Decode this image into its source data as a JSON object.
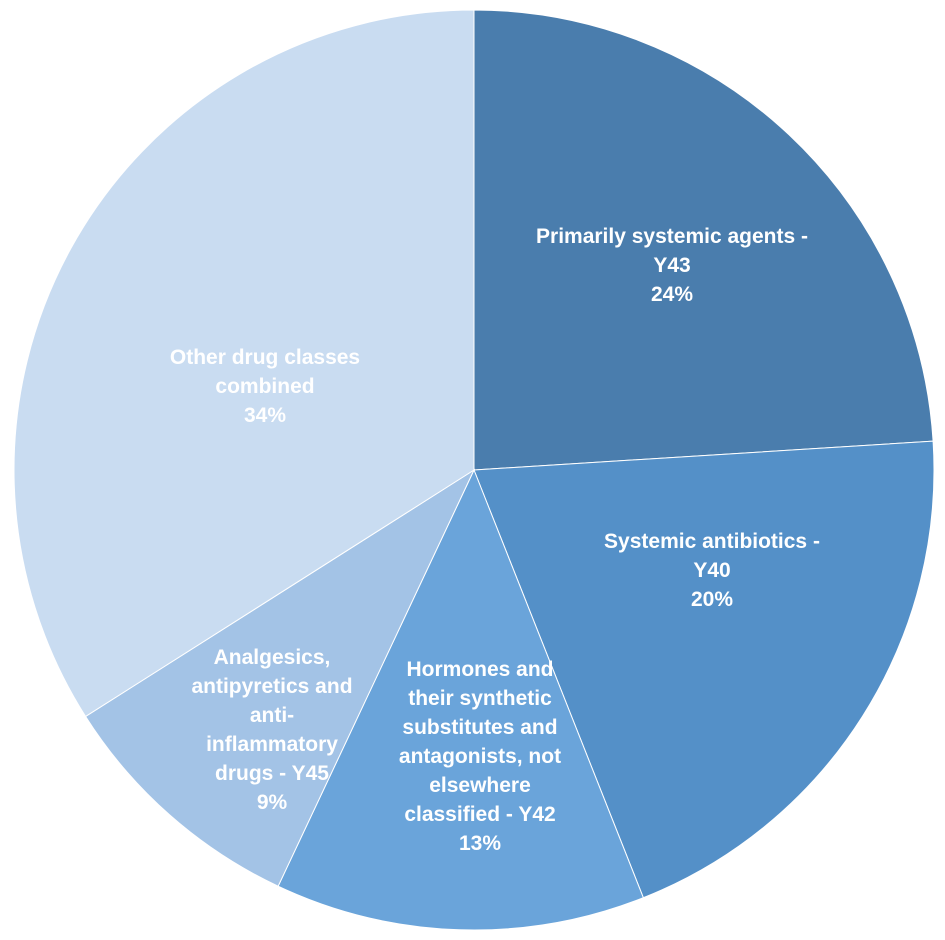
{
  "chart_data": {
    "type": "pie",
    "title": "",
    "start_angle_deg": 0,
    "direction": "clockwise",
    "slices": [
      {
        "label_lines": [
          "Primarily systemic agents -",
          "Y43"
        ],
        "value": 24,
        "value_label": "24%",
        "color": "#4A7DAD"
      },
      {
        "label_lines": [
          "Systemic antibiotics -",
          "Y40"
        ],
        "value": 20,
        "value_label": "20%",
        "color": "#5490C8"
      },
      {
        "label_lines": [
          "Hormones and",
          "their synthetic",
          "substitutes and",
          "antagonists, not",
          "elsewhere",
          "classified - Y42"
        ],
        "value": 13,
        "value_label": "13%",
        "color": "#6AA4DA"
      },
      {
        "label_lines": [
          "Analgesics,",
          "antipyretics and",
          "anti-",
          "inflammatory",
          "drugs - Y45"
        ],
        "value": 9,
        "value_label": "9%",
        "color": "#A3C3E6"
      },
      {
        "label_lines": [
          "Other drug classes",
          "combined"
        ],
        "value": 34,
        "value_label": "34%",
        "color": "#C9DCF1"
      }
    ]
  }
}
